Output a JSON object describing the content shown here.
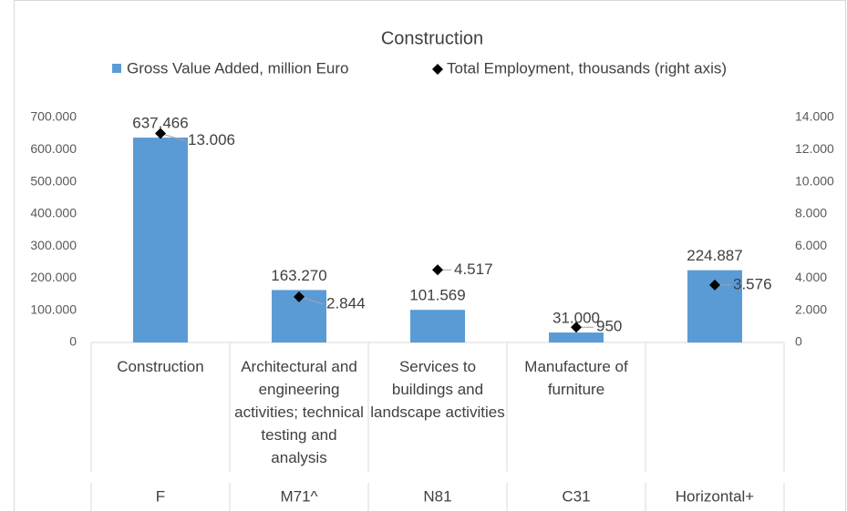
{
  "chart_data": {
    "type": "bar_line_combo",
    "title": "Construction",
    "categories": [
      "Construction",
      "Architectural and engineering activities; technical testing and analysis",
      "Services to buildings and landscape activities",
      "Manufacture of furniture",
      null
    ],
    "category_codes": [
      "F",
      "M71^",
      "N81",
      "C31",
      "Horizontal+"
    ],
    "series": [
      {
        "name": "Gross Value Added, million Euro",
        "type": "bar",
        "color": "#5b9bd5",
        "values": [
          637466,
          163270,
          101569,
          31000,
          224887
        ],
        "value_labels": [
          "637.466",
          "163.270",
          "101.569",
          "31.000",
          "224.887"
        ]
      },
      {
        "name": "Total Employment, thousands (right axis)",
        "type": "scatter",
        "axis": "y2",
        "color": "#000000",
        "values": [
          13006,
          2844,
          4517,
          950,
          3576
        ],
        "value_labels": [
          "13.006",
          "2.844",
          "4.517",
          "950",
          "3.576"
        ]
      }
    ],
    "ylim": [
      0,
      700000
    ],
    "yticks": [
      0,
      {
        "value": 100000,
        "label": "100.000"
      },
      {
        "value": 200000,
        "label": "200.000"
      },
      {
        "value": 300000,
        "label": "300.000"
      },
      {
        "value": 400000,
        "label": "400.000"
      },
      {
        "value": 500000,
        "label": "500.000"
      },
      {
        "value": 600000,
        "label": "600.000"
      },
      {
        "value": 700000,
        "label": "700.000"
      }
    ],
    "y2lim": [
      0,
      14000
    ],
    "y2ticks": [
      0,
      {
        "value": 2000,
        "label": "2.000"
      },
      {
        "value": 4000,
        "label": "4.000"
      },
      {
        "value": 6000,
        "label": "6.000"
      },
      {
        "value": 8000,
        "label": "8.000"
      },
      {
        "value": 10000,
        "label": "10.000"
      },
      {
        "value": 12000,
        "label": "12.000"
      },
      {
        "value": 14000,
        "label": "14.000"
      }
    ],
    "legend": "top"
  }
}
